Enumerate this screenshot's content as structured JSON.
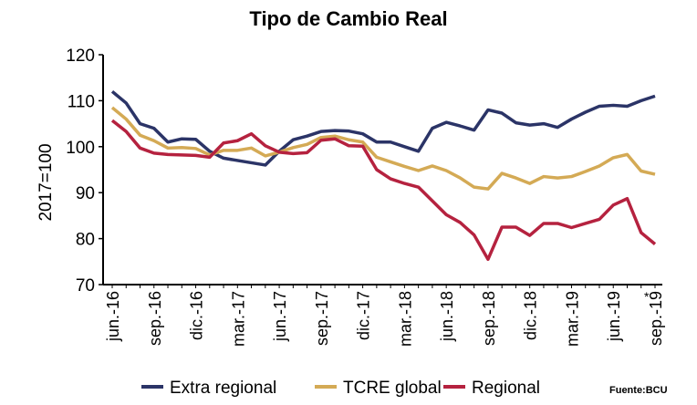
{
  "chart_data": {
    "type": "line",
    "title": "Tipo de Cambio Real",
    "ylabel": "2017=100",
    "xlabel": "",
    "ylim": [
      70,
      120
    ],
    "yticks": [
      70,
      80,
      90,
      100,
      110,
      120
    ],
    "x": [
      "jun.-16",
      "jul.-16",
      "ago.-16",
      "sep.-16",
      "oct.-16",
      "nov.-16",
      "dic.-16",
      "ene.-17",
      "feb.-17",
      "mar.-17",
      "abr.-17",
      "may.-17",
      "jun.-17",
      "jul.-17",
      "ago.-17",
      "sep.-17",
      "oct.-17",
      "nov.-17",
      "dic.-17",
      "ene.-18",
      "feb.-18",
      "mar.-18",
      "abr.-18",
      "may.-18",
      "jun.-18",
      "jul.-18",
      "ago.-18",
      "sep.-18",
      "oct.-18",
      "nov.-18",
      "dic.-18",
      "ene.-19",
      "feb.-19",
      "mar.-19",
      "abr.-19",
      "may.-19",
      "jun.-19",
      "jul.-19",
      "ago.-19",
      "sep.-19"
    ],
    "xtick_labels": [
      "jun.-16",
      "sep.-16",
      "dic.-16",
      "mar.-17",
      "jun.-17",
      "sep.-17",
      "dic.-17",
      "mar.-18",
      "jun.-18",
      "sep.-18",
      "dic.-18",
      "mar.-19",
      "jun.-19",
      "sep.-19"
    ],
    "series": [
      {
        "name": "Extra regional",
        "color": "#2b3467",
        "values": [
          112,
          109.5,
          105,
          104,
          101,
          101.7,
          101.6,
          99,
          97.5,
          97,
          96.5,
          96,
          99,
          101.5,
          102.3,
          103.3,
          103.5,
          103.4,
          102.8,
          101,
          101,
          100,
          99,
          104,
          105.3,
          104.5,
          103.6,
          108,
          107.3,
          105.2,
          104.7,
          105,
          104.2,
          106,
          107.5,
          108.8,
          109,
          108.8,
          110,
          111
        ]
      },
      {
        "name": "TCRE global",
        "color": "#d4aa55",
        "values": [
          108.5,
          106,
          102.5,
          101.3,
          99.7,
          99.8,
          99.6,
          98.2,
          99.2,
          99.2,
          99.7,
          98,
          98.8,
          99.8,
          100.5,
          102,
          102.3,
          101.5,
          101,
          97.7,
          96.7,
          95.7,
          94.8,
          95.8,
          94.8,
          93.2,
          91.2,
          90.8,
          94.2,
          93.2,
          92,
          93.5,
          93.2,
          93.5,
          94.6,
          95.8,
          97.6,
          98.3,
          94.7,
          94
        ]
      },
      {
        "name": "Regional",
        "color": "#b5223f",
        "values": [
          105.7,
          103.3,
          99.7,
          98.6,
          98.3,
          98.2,
          98.1,
          97.7,
          100.8,
          101.3,
          102.8,
          100.2,
          98.8,
          98.5,
          98.7,
          101.4,
          101.7,
          100.2,
          100.1,
          95,
          93,
          92,
          91.2,
          88.2,
          85.2,
          83.5,
          80.8,
          75.5,
          82.5,
          82.5,
          80.7,
          83.3,
          83.3,
          82.4,
          83.3,
          84.2,
          87.3,
          88.7,
          81.3,
          78.8
        ]
      }
    ],
    "annotations": [
      "*"
    ],
    "source": "Fuente:BCU",
    "legend": "bottom",
    "grid": false
  }
}
